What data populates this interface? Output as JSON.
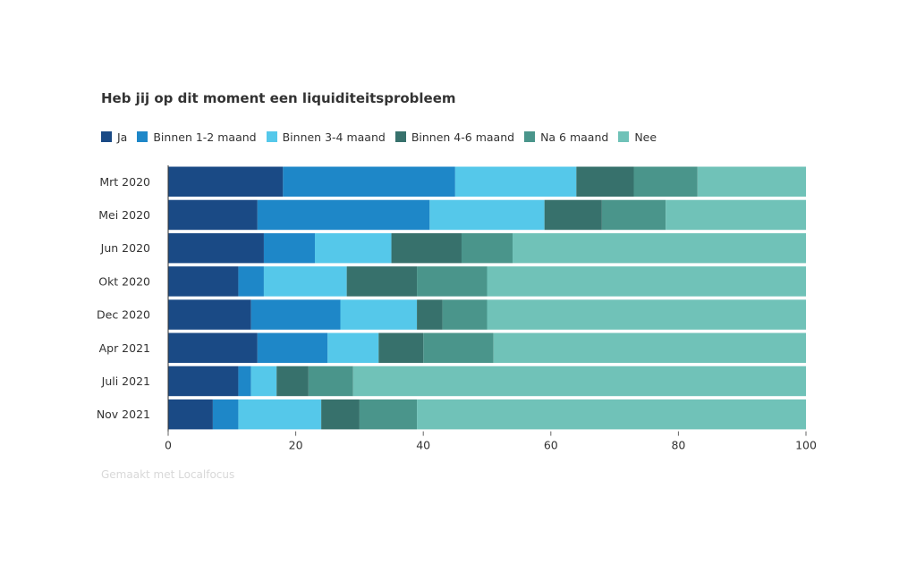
{
  "chart_data": {
    "type": "bar",
    "orientation": "horizontal",
    "stacked": true,
    "title": "Heb jij op dit moment een liquiditeitsprobleem",
    "categories": [
      "Mrt 2020",
      "Mei 2020",
      "Jun 2020",
      "Okt 2020",
      "Dec 2020",
      "Apr 2021",
      "Juli 2021",
      "Nov 2021"
    ],
    "series": [
      {
        "name": "Ja",
        "color": "#1a4a85",
        "values": [
          18,
          14,
          15,
          11,
          13,
          14,
          11,
          7
        ]
      },
      {
        "name": "Binnen 1-2 maand",
        "color": "#1e87c8",
        "values": [
          27,
          27,
          8,
          4,
          14,
          11,
          2,
          4
        ]
      },
      {
        "name": "Binnen 3-4 maand",
        "color": "#55c8ea",
        "values": [
          19,
          18,
          12,
          13,
          12,
          8,
          4,
          13
        ]
      },
      {
        "name": "Binnen 4-6 maand",
        "color": "#37716c",
        "values": [
          9,
          9,
          11,
          11,
          4,
          7,
          5,
          6
        ]
      },
      {
        "name": "Na 6 maand",
        "color": "#4a958b",
        "values": [
          10,
          10,
          8,
          11,
          7,
          11,
          7,
          9
        ]
      },
      {
        "name": "Nee",
        "color": "#70c2b8",
        "values": [
          17,
          22,
          46,
          50,
          50,
          49,
          71,
          61
        ]
      }
    ],
    "xlim": [
      0,
      100
    ],
    "xticks": [
      "0",
      "20",
      "40",
      "60",
      "80",
      "100"
    ],
    "legend_position": "top",
    "grid": false
  },
  "credit": "Gemaakt met Localfocus"
}
